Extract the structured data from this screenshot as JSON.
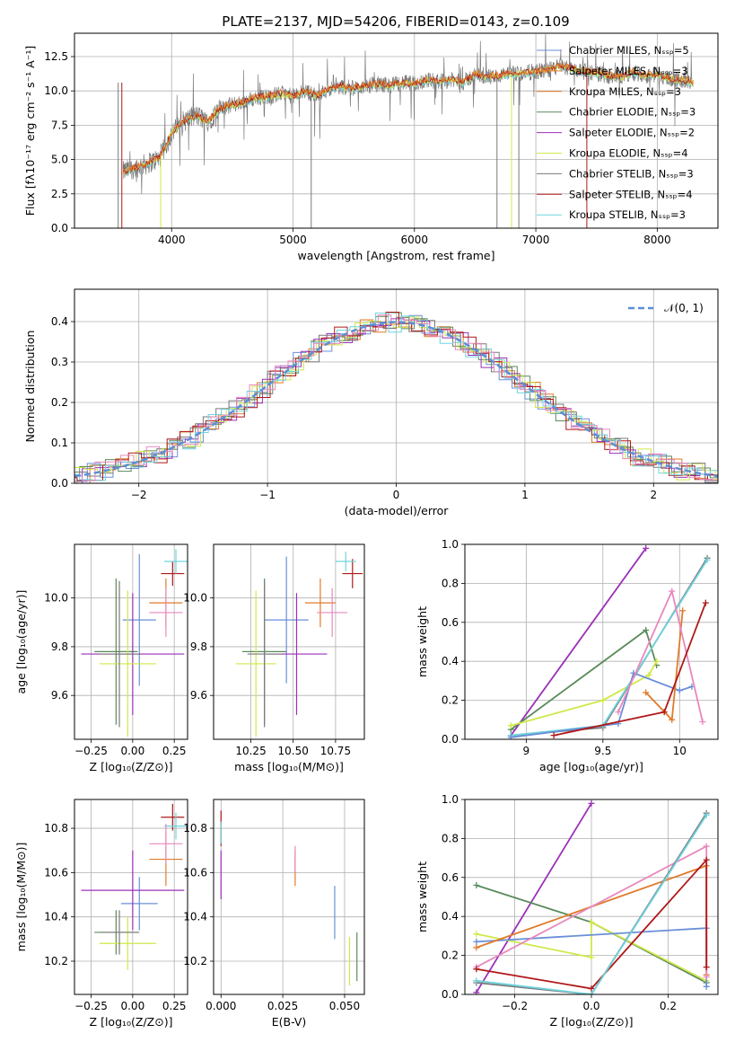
{
  "title": "PLATE=2137, MJD=54206, FIBERID=0143, z=0.109",
  "colors": {
    "grid": "#b0b0b0",
    "blue": "#6a8fd8",
    "orange": "#e07b2a",
    "green": "#5a8a5a",
    "purple": "#9b30b8",
    "yellow": "#d0e84a",
    "gray": "#7a7a7a",
    "red": "#b01818",
    "cyan": "#6fd3dd",
    "pink": "#e888bd",
    "normal": "#5b8fd6"
  },
  "chart_data": [
    {
      "id": "spectrum",
      "type": "line",
      "xlabel": "wavelength [Angstrom, rest frame]",
      "ylabel": "Flux [fλ10⁻¹⁷ erg cm⁻² s⁻¹ A⁻¹]",
      "xlim": [
        3200,
        8500
      ],
      "ylim": [
        0,
        14.2
      ],
      "xticks": [
        4000,
        5000,
        6000,
        7000,
        8000
      ],
      "yticks": [
        0.0,
        2.5,
        5.0,
        7.5,
        10.0,
        12.5
      ],
      "legend": [
        "Chabrier MILES, Nₛₛₚ=5",
        "Salpeter MILES, Nₛₛₚ=3",
        "Kroupa MILES, Nₛₛₚ=3",
        "Chabrier ELODIE, Nₛₛₚ=3",
        "Salpeter ELODIE, Nₛₛₚ=2",
        "Kroupa ELODIE, Nₛₛₚ=4",
        "Chabrier STELIB, Nₛₛₚ=3",
        "Salpeter STELIB, Nₛₛₚ=4",
        "Kroupa STELIB, Nₛₛₚ=3"
      ],
      "legend_colors": [
        "blue",
        "orange",
        "orange",
        "green",
        "purple",
        "yellow",
        "gray",
        "red",
        "cyan"
      ],
      "legend_position": "top-right",
      "continuum": [
        [
          3600,
          4.1
        ],
        [
          3700,
          4.4
        ],
        [
          3800,
          4.7
        ],
        [
          3900,
          5.1
        ],
        [
          4000,
          6.9
        ],
        [
          4100,
          7.8
        ],
        [
          4200,
          8.2
        ],
        [
          4300,
          7.8
        ],
        [
          4400,
          8.7
        ],
        [
          4500,
          9.0
        ],
        [
          4600,
          9.2
        ],
        [
          4700,
          9.5
        ],
        [
          4800,
          9.6
        ],
        [
          4900,
          9.8
        ],
        [
          5000,
          9.6
        ],
        [
          5100,
          10.0
        ],
        [
          5200,
          9.6
        ],
        [
          5300,
          10.2
        ],
        [
          5400,
          10.3
        ],
        [
          5500,
          10.2
        ],
        [
          5600,
          10.4
        ],
        [
          5700,
          10.5
        ],
        [
          5800,
          10.4
        ],
        [
          5900,
          10.6
        ],
        [
          6000,
          10.5
        ],
        [
          6100,
          10.8
        ],
        [
          6200,
          10.7
        ],
        [
          6300,
          10.8
        ],
        [
          6400,
          10.6
        ],
        [
          6500,
          11.2
        ],
        [
          6600,
          11.0
        ],
        [
          6700,
          11.1
        ],
        [
          6800,
          11.2
        ],
        [
          6900,
          11.3
        ],
        [
          7000,
          11.4
        ],
        [
          7100,
          11.5
        ],
        [
          7200,
          11.8
        ],
        [
          7300,
          11.6
        ],
        [
          7400,
          11.4
        ],
        [
          7500,
          11.3
        ],
        [
          7600,
          11.1
        ],
        [
          7700,
          11.0
        ],
        [
          7800,
          11.4
        ],
        [
          7900,
          11.1
        ],
        [
          8000,
          11.2
        ],
        [
          8100,
          10.9
        ],
        [
          8200,
          10.8
        ],
        [
          8300,
          10.6
        ]
      ]
    },
    {
      "id": "residuals",
      "type": "line",
      "xlabel": "(data-model)/error",
      "ylabel": "Normed distribution",
      "xlim": [
        -2.5,
        2.5
      ],
      "ylim": [
        0,
        0.48
      ],
      "xticks": [
        -2,
        -1,
        0,
        1,
        2
      ],
      "yticks": [
        0.0,
        0.1,
        0.2,
        0.3,
        0.4
      ],
      "legend": [
        "𝒩(0, 1)"
      ],
      "legend_position": "top-right"
    },
    {
      "id": "age-vs-Z",
      "type": "scatter",
      "xlabel": "Z [log₁₀(Z/Z⊙)]",
      "ylabel": "age  [log₁₀(age/yr)]",
      "xlim": [
        -0.35,
        0.33
      ],
      "ylim": [
        9.42,
        10.22
      ],
      "xticks": [
        -0.25,
        0.0,
        0.25
      ],
      "xticklabels": [
        "−0.25",
        "0.00",
        "0.25"
      ],
      "yticks": [
        9.6,
        9.8,
        10.0
      ],
      "errorbars": [
        {
          "c": "blue",
          "x": 0.04,
          "xe": 0.1,
          "y": 9.91,
          "ye": 0.27
        },
        {
          "c": "orange",
          "x": 0.2,
          "xe": 0.1,
          "y": 9.98,
          "ye": 0.1
        },
        {
          "c": "green",
          "x": -0.1,
          "xe": 0.13,
          "y": 9.78,
          "ye": 0.3
        },
        {
          "c": "purple",
          "x": 0.0,
          "xe": 0.31,
          "y": 9.77,
          "ye": 0.25
        },
        {
          "c": "yellow",
          "x": -0.03,
          "xe": 0.17,
          "y": 9.73,
          "ye": 0.3
        },
        {
          "c": "gray",
          "x": -0.08,
          "xe": 0.12,
          "y": 9.77,
          "ye": 0.3
        },
        {
          "c": "red",
          "x": 0.24,
          "xe": 0.07,
          "y": 10.1,
          "ye": 0.05
        },
        {
          "c": "cyan",
          "x": 0.26,
          "xe": 0.07,
          "y": 10.15,
          "ye": 0.05
        },
        {
          "c": "pink",
          "x": 0.2,
          "xe": 0.1,
          "y": 9.94,
          "ye": 0.1
        }
      ]
    },
    {
      "id": "age-vs-mass",
      "type": "scatter",
      "xlabel": "mass [log₁₀(M/M⊙)]",
      "xlim": [
        10.03,
        10.92
      ],
      "ylim": [
        9.42,
        10.22
      ],
      "xticks": [
        10.25,
        10.5,
        10.75
      ],
      "xticklabels": [
        "10.25",
        "10.50",
        "10.75"
      ],
      "yticks": [
        9.6,
        9.8,
        10.0
      ],
      "errorbars": [
        {
          "c": "blue",
          "x": 10.46,
          "xe": 0.13,
          "y": 9.91,
          "ye": 0.26
        },
        {
          "c": "orange",
          "x": 10.66,
          "xe": 0.09,
          "y": 9.98,
          "ye": 0.1
        },
        {
          "c": "green",
          "x": 10.33,
          "xe": 0.13,
          "y": 9.78,
          "ye": 0.3
        },
        {
          "c": "purple",
          "x": 10.52,
          "xe": 0.18,
          "y": 9.77,
          "ye": 0.25
        },
        {
          "c": "yellow",
          "x": 10.28,
          "xe": 0.12,
          "y": 9.73,
          "ye": 0.3
        },
        {
          "c": "gray",
          "x": 10.33,
          "xe": 0.1,
          "y": 9.77,
          "ye": 0.3
        },
        {
          "c": "red",
          "x": 10.85,
          "xe": 0.06,
          "y": 10.1,
          "ye": 0.06
        },
        {
          "c": "cyan",
          "x": 10.81,
          "xe": 0.06,
          "y": 10.15,
          "ye": 0.04
        },
        {
          "c": "pink",
          "x": 10.73,
          "xe": 0.09,
          "y": 9.94,
          "ye": 0.1
        }
      ]
    },
    {
      "id": "weights-vs-age",
      "type": "line",
      "xlabel": "age  [log₁₀(age/yr)]",
      "ylabel": "mass weight",
      "xlim": [
        8.6,
        10.25
      ],
      "ylim": [
        0,
        1.0
      ],
      "xticks": [
        9.0,
        9.5,
        10.0
      ],
      "yticks": [
        0.0,
        0.2,
        0.4,
        0.6,
        0.8,
        1.0
      ],
      "series": [
        {
          "c": "purple",
          "points": [
            [
              8.9,
              0.02
            ],
            [
              9.78,
              0.98
            ]
          ]
        },
        {
          "c": "green",
          "points": [
            [
              8.9,
              0.05
            ],
            [
              9.78,
              0.56
            ],
            [
              9.85,
              0.38
            ]
          ]
        },
        {
          "c": "yellow",
          "points": [
            [
              8.9,
              0.07
            ],
            [
              9.5,
              0.2
            ],
            [
              9.8,
              0.33
            ],
            [
              9.85,
              0.4
            ]
          ]
        },
        {
          "c": "gray",
          "points": [
            [
              8.9,
              0.02
            ],
            [
              9.5,
              0.06
            ],
            [
              10.18,
              0.93
            ]
          ]
        },
        {
          "c": "cyan",
          "points": [
            [
              8.9,
              0.02
            ],
            [
              9.5,
              0.07
            ],
            [
              10.18,
              0.92
            ]
          ]
        },
        {
          "c": "blue",
          "points": [
            [
              8.9,
              0.01
            ],
            [
              9.6,
              0.08
            ],
            [
              9.7,
              0.34
            ],
            [
              10.0,
              0.25
            ],
            [
              10.08,
              0.27
            ]
          ]
        },
        {
          "c": "orange",
          "points": [
            [
              9.78,
              0.24
            ],
            [
              9.95,
              0.1
            ],
            [
              10.02,
              0.66
            ]
          ]
        },
        {
          "c": "pink",
          "points": [
            [
              9.6,
              0.14
            ],
            [
              9.95,
              0.76
            ],
            [
              10.15,
              0.09
            ]
          ]
        },
        {
          "c": "red",
          "points": [
            [
              9.18,
              0.02
            ],
            [
              9.9,
              0.14
            ],
            [
              10.17,
              0.7
            ]
          ]
        }
      ]
    },
    {
      "id": "mass-vs-Z",
      "type": "scatter",
      "xlabel": "Z [log₁₀(Z/Z⊙)]",
      "ylabel": "mass [log₁₀(M/M⊙)]",
      "xlim": [
        -0.35,
        0.33
      ],
      "ylim": [
        10.05,
        10.93
      ],
      "xticks": [
        -0.25,
        0.0,
        0.25
      ],
      "xticklabels": [
        "−0.25",
        "0.00",
        "0.25"
      ],
      "yticks": [
        10.2,
        10.4,
        10.6,
        10.8
      ],
      "errorbars": [
        {
          "c": "blue",
          "x": 0.04,
          "xe": 0.11,
          "y": 10.46,
          "ye": 0.12
        },
        {
          "c": "orange",
          "x": 0.2,
          "xe": 0.1,
          "y": 10.66,
          "ye": 0.12
        },
        {
          "c": "green",
          "x": -0.1,
          "xe": 0.13,
          "y": 10.33,
          "ye": 0.1
        },
        {
          "c": "purple",
          "x": 0.0,
          "xe": 0.31,
          "y": 10.52,
          "ye": 0.18
        },
        {
          "c": "yellow",
          "x": -0.03,
          "xe": 0.17,
          "y": 10.28,
          "ye": 0.12
        },
        {
          "c": "gray",
          "x": -0.08,
          "xe": 0.12,
          "y": 10.33,
          "ye": 0.1
        },
        {
          "c": "red",
          "x": 0.24,
          "xe": 0.07,
          "y": 10.85,
          "ye": 0.06
        },
        {
          "c": "cyan",
          "x": 0.26,
          "xe": 0.07,
          "y": 10.81,
          "ye": 0.06
        },
        {
          "c": "pink",
          "x": 0.2,
          "xe": 0.1,
          "y": 10.73,
          "ye": 0.09
        }
      ]
    },
    {
      "id": "mass-vs-ebv",
      "type": "scatter",
      "xlabel": "E(B-V)",
      "xlim": [
        -0.003,
        0.058
      ],
      "ylim": [
        10.05,
        10.93
      ],
      "xticks": [
        0.0,
        0.025,
        0.05
      ],
      "xticklabels": [
        "0.000",
        "0.025",
        "0.050"
      ],
      "yticks": [
        10.2,
        10.4,
        10.6,
        10.8
      ],
      "errorbars": [
        {
          "c": "blue",
          "x": 0.046,
          "xe": 0,
          "y": 10.42,
          "ye": 0.12
        },
        {
          "c": "orange",
          "x": 0.03,
          "xe": 0,
          "y": 10.62,
          "ye": 0.08
        },
        {
          "c": "purple",
          "x": 0.0,
          "xe": 0,
          "y": 10.59,
          "ye": 0.11
        },
        {
          "c": "yellow",
          "x": 0.052,
          "xe": 0,
          "y": 10.2,
          "ye": 0.11
        },
        {
          "c": "green",
          "x": 0.055,
          "xe": 0,
          "y": 10.22,
          "ye": 0.11
        },
        {
          "c": "red",
          "x": 0.0,
          "xe": 0,
          "y": 10.8,
          "ye": 0.08
        },
        {
          "c": "cyan",
          "x": 0.0,
          "xe": 0,
          "y": 10.78,
          "ye": 0.05
        },
        {
          "c": "pink",
          "x": 0.03,
          "xe": 0,
          "y": 10.66,
          "ye": 0.06
        }
      ]
    },
    {
      "id": "weights-vs-Z",
      "type": "line",
      "xlabel": "Z [log₁₀(Z/Z⊙)]",
      "ylabel": "mass weight",
      "xlim": [
        -0.33,
        0.33
      ],
      "ylim": [
        0,
        1.0
      ],
      "xticks": [
        -0.2,
        0.0,
        0.2
      ],
      "xticklabels": [
        "−0.2",
        "0.0",
        "0.2"
      ],
      "yticks": [
        0.0,
        0.2,
        0.4,
        0.6,
        0.8,
        1.0
      ],
      "series": [
        {
          "c": "purple",
          "points": [
            [
              -0.3,
              0.01
            ],
            [
              0.0,
              0.98
            ]
          ]
        },
        {
          "c": "green",
          "points": [
            [
              -0.3,
              0.56
            ],
            [
              0.0,
              0.37
            ],
            [
              0.3,
              0.06
            ]
          ]
        },
        {
          "c": "yellow",
          "points": [
            [
              -0.3,
              0.31
            ],
            [
              0.0,
              0.19
            ],
            [
              0.0,
              0.37
            ],
            [
              0.3,
              0.07
            ]
          ]
        },
        {
          "c": "blue",
          "points": [
            [
              -0.3,
              0.27
            ],
            [
              0.3,
              0.34
            ],
            [
              0.3,
              0.04
            ]
          ]
        },
        {
          "c": "orange",
          "points": [
            [
              -0.3,
              0.24
            ],
            [
              0.3,
              0.66
            ],
            [
              0.3,
              0.1
            ]
          ]
        },
        {
          "c": "pink",
          "points": [
            [
              -0.3,
              0.14
            ],
            [
              0.3,
              0.76
            ],
            [
              0.3,
              0.09
            ]
          ]
        },
        {
          "c": "red",
          "points": [
            [
              -0.3,
              0.13
            ],
            [
              0.0,
              0.03
            ],
            [
              0.3,
              0.69
            ],
            [
              0.3,
              0.14
            ]
          ]
        },
        {
          "c": "gray",
          "points": [
            [
              -0.3,
              0.06
            ],
            [
              0.0,
              0.0
            ],
            [
              0.3,
              0.93
            ]
          ]
        },
        {
          "c": "cyan",
          "points": [
            [
              -0.3,
              0.07
            ],
            [
              0.0,
              0.0
            ],
            [
              0.3,
              0.92
            ]
          ]
        }
      ]
    }
  ]
}
